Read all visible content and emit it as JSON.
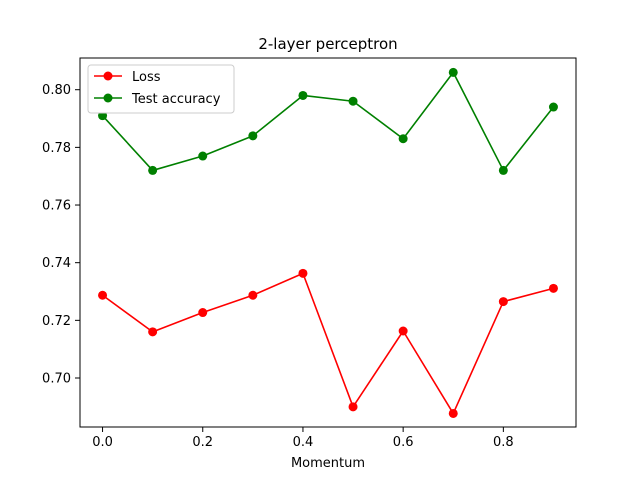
{
  "chart_data": {
    "type": "line",
    "title": "2-layer perceptron",
    "xlabel": "Momentum",
    "ylabel": "",
    "x": [
      0.0,
      0.1,
      0.2,
      0.3,
      0.4,
      0.5,
      0.6,
      0.7,
      0.8,
      0.9
    ],
    "xlim": [
      -0.045,
      0.945
    ],
    "ylim": [
      0.683,
      0.811
    ],
    "xticks": [
      0.0,
      0.2,
      0.4,
      0.6,
      0.8
    ],
    "xtick_labels": [
      "0.0",
      "0.2",
      "0.4",
      "0.6",
      "0.8"
    ],
    "yticks": [
      0.7,
      0.72,
      0.74,
      0.76,
      0.78,
      0.8
    ],
    "ytick_labels": [
      "0.70",
      "0.72",
      "0.74",
      "0.76",
      "0.78",
      "0.80"
    ],
    "grid": false,
    "legend_position": "top-left",
    "series": [
      {
        "name": "Loss",
        "color": "#ff0000",
        "marker": "circle",
        "values": [
          0.7287,
          0.716,
          0.7227,
          0.7287,
          0.7363,
          0.69,
          0.7163,
          0.6877,
          0.7265,
          0.7311
        ]
      },
      {
        "name": "Test accuracy",
        "color": "#008000",
        "marker": "circle",
        "values": [
          0.791,
          0.772,
          0.777,
          0.784,
          0.798,
          0.796,
          0.783,
          0.806,
          0.772,
          0.794
        ]
      }
    ]
  }
}
